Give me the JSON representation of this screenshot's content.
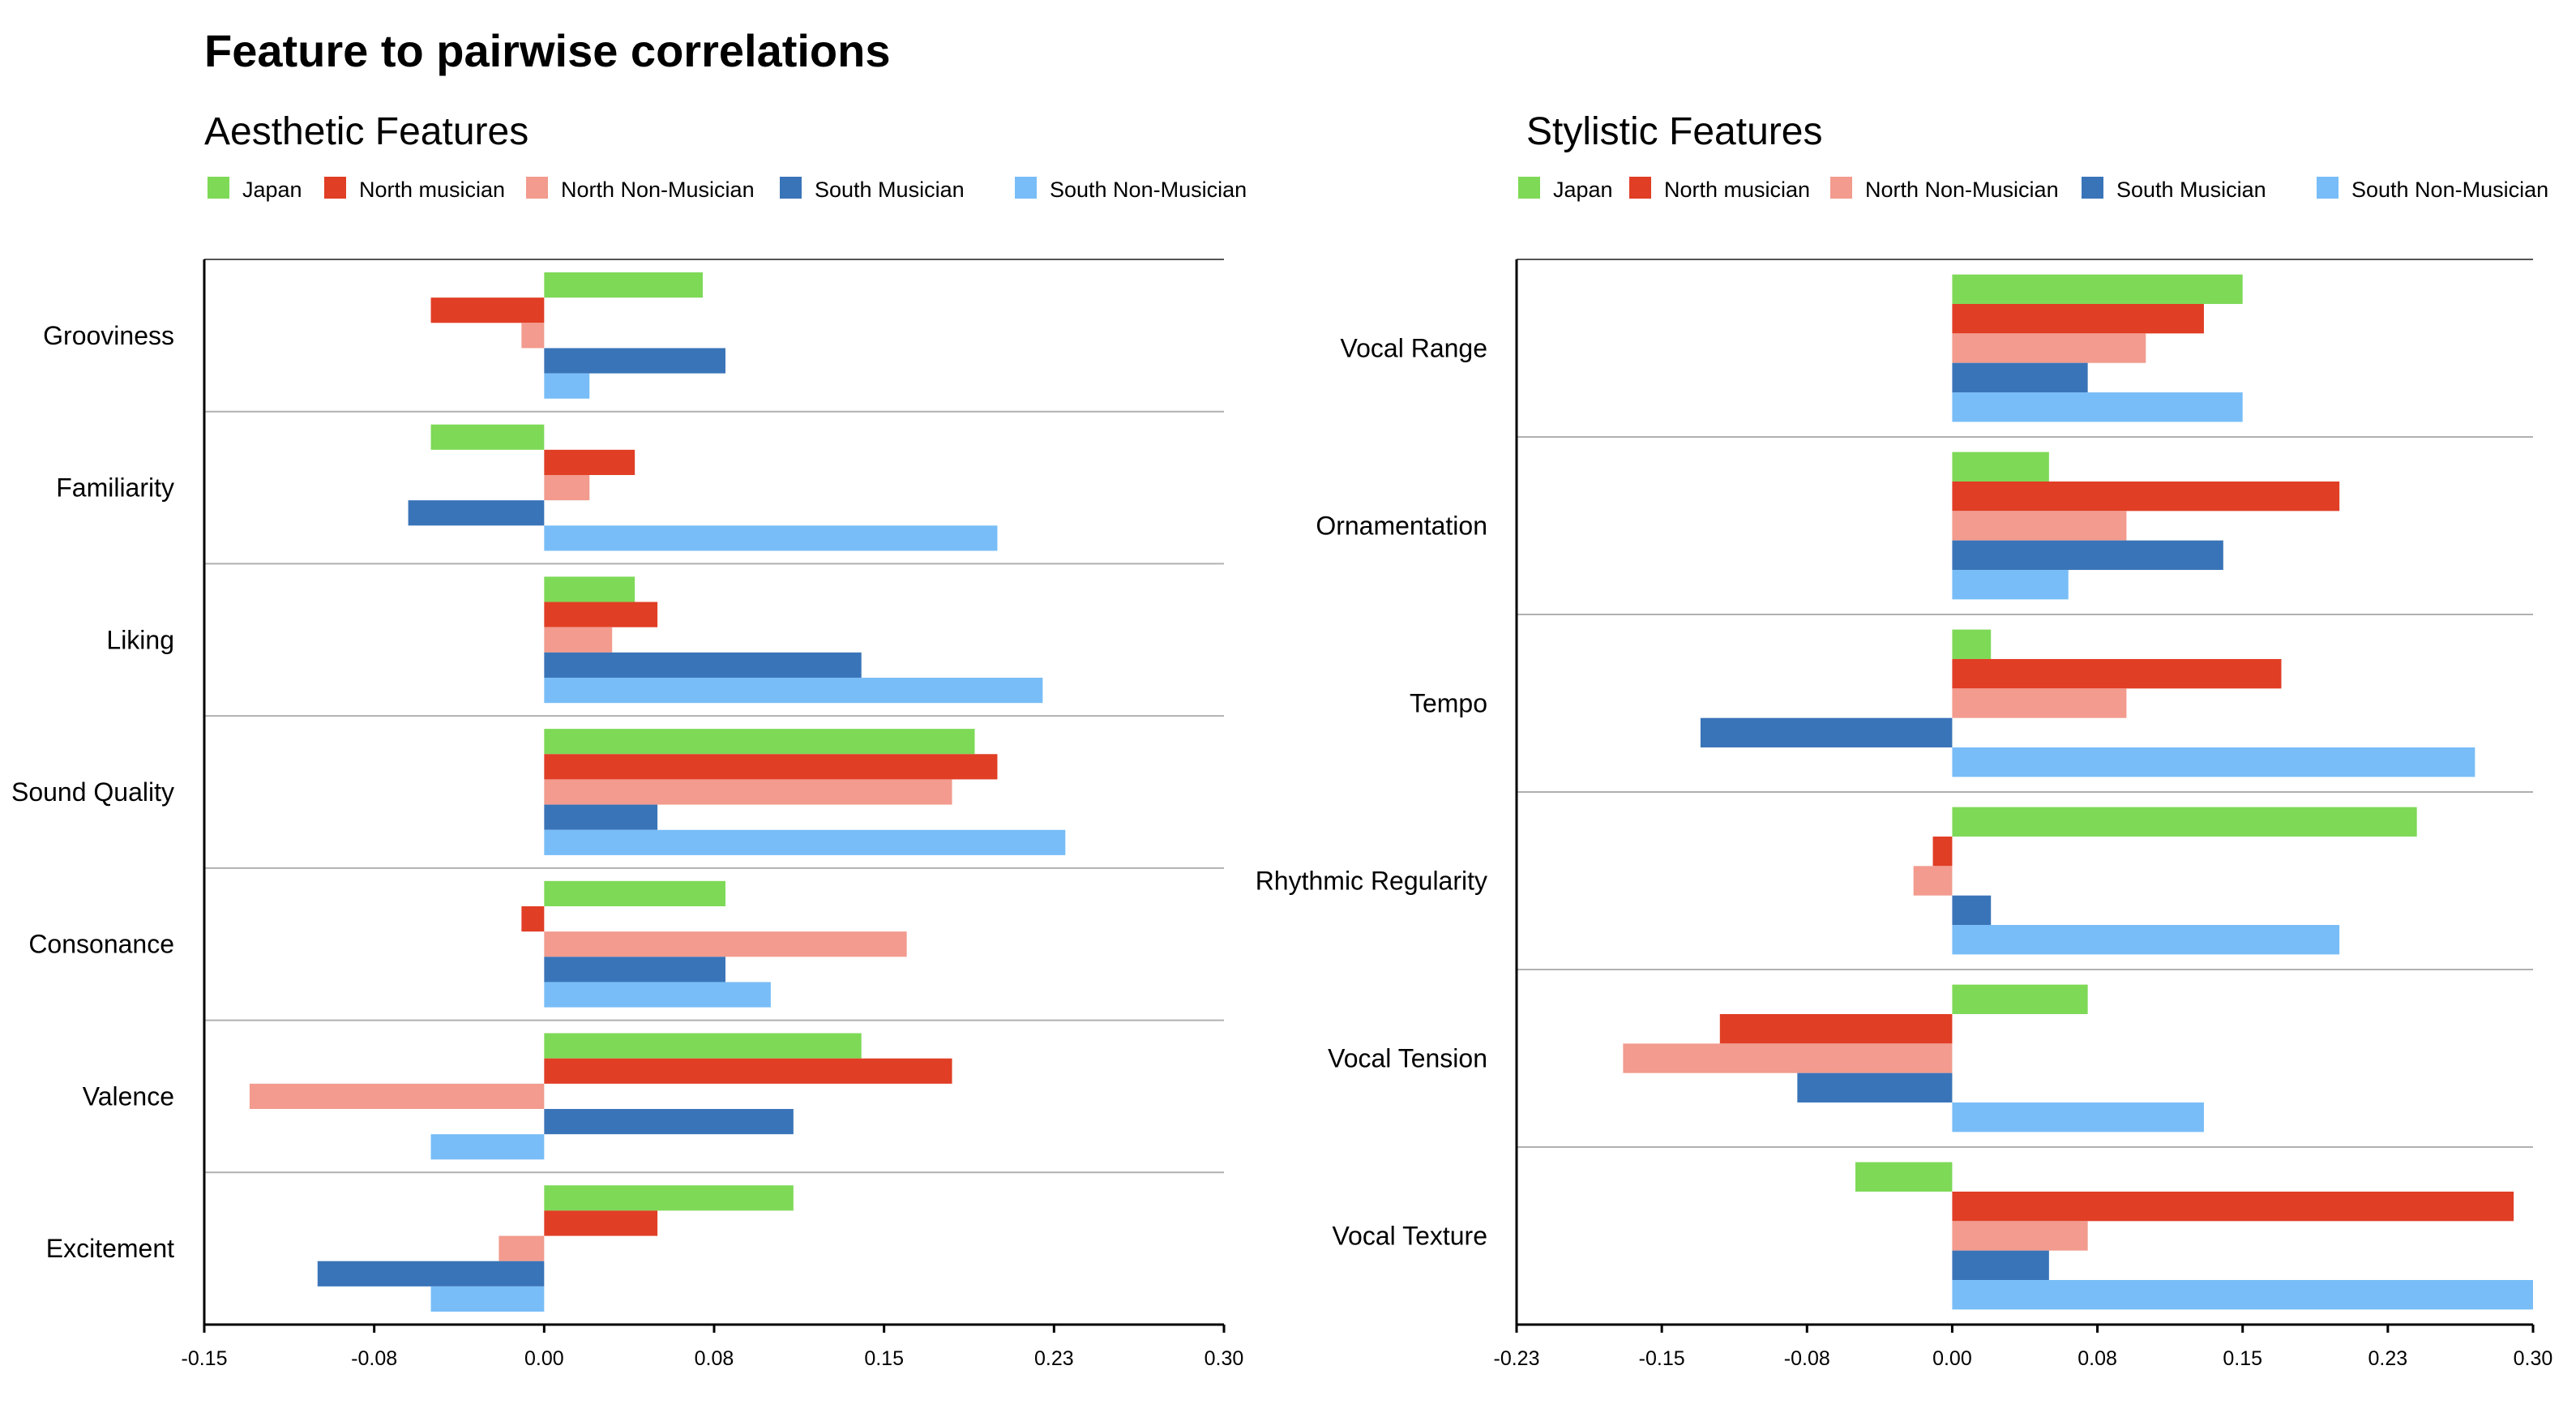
{
  "title": "Feature to pairwise correlations",
  "colors": {
    "Japan": "#7ed957",
    "North musician": "#e03e25",
    "North Non-Musician": "#f29b8e",
    "South Musician": "#3a74b8",
    "South Non-Musician": "#78bdf7"
  },
  "legend": [
    "Japan",
    "North musician",
    "North Non-Musician",
    "South Musician",
    "South Non-Musician"
  ],
  "chart_data": [
    {
      "type": "bar",
      "orientation": "horizontal",
      "title": "Aesthetic Features",
      "categories": [
        "Grooviness",
        "Familiarity",
        "Liking",
        "Sound Quality",
        "Consonance",
        "Valence",
        "Excitement"
      ],
      "xlim": [
        -0.15,
        0.3
      ],
      "ticks": [
        -0.15,
        -0.075,
        0,
        0.075,
        0.15,
        0.225,
        0.3
      ],
      "tick_labels": [
        "-0.15",
        "-0.08",
        "0.00",
        "0.08",
        "0.15",
        "0.23",
        "0.30"
      ],
      "series": [
        {
          "name": "Japan",
          "values": [
            0.07,
            -0.05,
            0.04,
            0.19,
            0.08,
            0.14,
            0.11
          ]
        },
        {
          "name": "North musician",
          "values": [
            -0.05,
            0.04,
            0.05,
            0.2,
            -0.01,
            0.18,
            0.05
          ]
        },
        {
          "name": "North Non-Musician",
          "values": [
            -0.01,
            0.02,
            0.03,
            0.18,
            0.16,
            -0.13,
            -0.02
          ]
        },
        {
          "name": "South Musician",
          "values": [
            0.08,
            -0.06,
            0.14,
            0.05,
            0.08,
            0.11,
            -0.1
          ]
        },
        {
          "name": "South Non-Musician",
          "values": [
            0.02,
            0.2,
            0.22,
            0.23,
            0.1,
            -0.05,
            -0.05
          ]
        }
      ]
    },
    {
      "type": "bar",
      "orientation": "horizontal",
      "title": "Stylistic Features",
      "categories": [
        "Vocal Range",
        "Ornamentation",
        "Tempo",
        "Rhythmic Regularity",
        "Vocal Tension",
        "Vocal Texture"
      ],
      "xlim": [
        -0.225,
        0.3
      ],
      "ticks": [
        -0.225,
        -0.15,
        -0.075,
        0,
        0.075,
        0.15,
        0.225,
        0.3
      ],
      "tick_labels": [
        "-0.23",
        "-0.15",
        "-0.08",
        "0.00",
        "0.08",
        "0.15",
        "0.23",
        "0.30"
      ],
      "series": [
        {
          "name": "Japan",
          "values": [
            0.15,
            0.05,
            0.02,
            0.24,
            0.07,
            -0.05
          ]
        },
        {
          "name": "North musician",
          "values": [
            0.13,
            0.2,
            0.17,
            -0.01,
            -0.12,
            0.29
          ]
        },
        {
          "name": "North Non-Musician",
          "values": [
            0.1,
            0.09,
            0.09,
            -0.02,
            -0.17,
            0.07
          ]
        },
        {
          "name": "South Musician",
          "values": [
            0.07,
            0.14,
            -0.13,
            0.02,
            -0.08,
            0.05
          ]
        },
        {
          "name": "South Non-Musician",
          "values": [
            0.15,
            0.06,
            0.27,
            0.2,
            0.13,
            0.3
          ]
        }
      ]
    }
  ]
}
